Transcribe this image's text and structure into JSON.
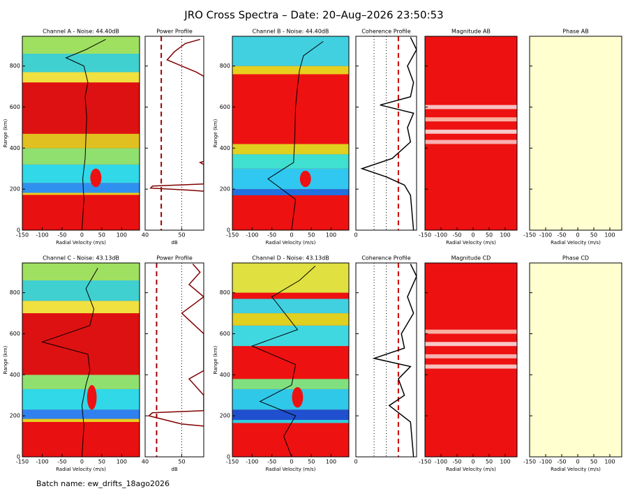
{
  "title": "JRO Cross Spectra – Date: 20–Aug–2026 23:50:53",
  "batch": "Batch name: ew_drifts_18ago2026",
  "chart_data": [
    {
      "type": "heatmap",
      "title": "Channel A - Noise: 44.40dB",
      "xlabel": "Radial Velocity (m/s)",
      "ylabel": "Range (km)",
      "xlim": [
        -150,
        145
      ],
      "ylim": [
        0,
        945
      ],
      "xticks": [
        -150,
        -100,
        -50,
        0,
        50,
        100
      ],
      "yticks": [
        0,
        200,
        400,
        600,
        800
      ],
      "ytick_labels": true,
      "background": "#ee1111",
      "bands": [
        {
          "y0": 0,
          "y1": 172,
          "color": "#e81010"
        },
        {
          "y0": 172,
          "y1": 182,
          "color": "#e8d020"
        },
        {
          "y0": 182,
          "y1": 230,
          "color": "#3090f0"
        },
        {
          "y0": 230,
          "y1": 320,
          "color": "#30d8e8"
        },
        {
          "y0": 320,
          "y1": 400,
          "color": "#90e070"
        },
        {
          "y0": 400,
          "y1": 470,
          "color": "#e0c020"
        },
        {
          "y0": 470,
          "y1": 720,
          "color": "#dd1111"
        },
        {
          "y0": 720,
          "y1": 770,
          "color": "#f0e040"
        },
        {
          "y0": 770,
          "y1": 860,
          "color": "#40d0d0"
        },
        {
          "y0": 860,
          "y1": 945,
          "color": "#a0e060"
        }
      ],
      "blob": {
        "x": 35,
        "y": 255,
        "rx": 14,
        "ry": 45,
        "color": "#ee1111"
      },
      "overlay": {
        "color": "#000000",
        "values": [
          0,
          5,
          2,
          8,
          10,
          12,
          8,
          15,
          5,
          -40,
          10,
          60
        ],
        "range": [
          0,
          150,
          250,
          350,
          450,
          550,
          650,
          720,
          800,
          840,
          880,
          930
        ]
      }
    },
    {
      "type": "profile",
      "title": "Power Profile",
      "xlabel": "dB",
      "xlim": [
        40,
        56
      ],
      "ylim": [
        0,
        945
      ],
      "xticks": [
        40,
        50
      ],
      "yticks": [
        0,
        200,
        400,
        600,
        800
      ],
      "ytick_labels": false,
      "dotted": [
        50
      ],
      "ref_lines": [
        {
          "value": 44.4,
          "color": "#a00000"
        }
      ],
      "series": [
        {
          "color": "#800000",
          "values": [
            56,
            52,
            41.5,
            42,
            56,
            56,
            55,
            56,
            56,
            56,
            54,
            50,
            46,
            48,
            51,
            55
          ],
          "range": [
            190,
            195,
            205,
            215,
            225,
            320,
            330,
            335,
            700,
            750,
            770,
            800,
            830,
            870,
            910,
            930
          ]
        }
      ]
    },
    {
      "type": "heatmap",
      "title": "Channel B - Noise: 44.40dB",
      "xlabel": "Radial Velocity (m/s)",
      "ylabel": "Range (km)",
      "xlim": [
        -150,
        145
      ],
      "ylim": [
        0,
        945
      ],
      "xticks": [
        -150,
        -100,
        -50,
        0,
        50,
        100
      ],
      "yticks": [
        0,
        200,
        400,
        600,
        800
      ],
      "ytick_labels": true,
      "background": "#ee1111",
      "bands": [
        {
          "y0": 0,
          "y1": 170,
          "color": "#ee1111"
        },
        {
          "y0": 170,
          "y1": 200,
          "color": "#2070e0"
        },
        {
          "y0": 200,
          "y1": 300,
          "color": "#30c8f0"
        },
        {
          "y0": 300,
          "y1": 370,
          "color": "#40e0d0"
        },
        {
          "y0": 370,
          "y1": 420,
          "color": "#e0d020"
        },
        {
          "y0": 420,
          "y1": 760,
          "color": "#ee1111"
        },
        {
          "y0": 760,
          "y1": 800,
          "color": "#e8d020"
        },
        {
          "y0": 800,
          "y1": 945,
          "color": "#40d0e0"
        }
      ],
      "blob": {
        "x": 35,
        "y": 250,
        "rx": 14,
        "ry": 40,
        "color": "#ee1111"
      },
      "overlay": {
        "color": "#000000",
        "values": [
          0,
          10,
          -60,
          5,
          8,
          10,
          15,
          20,
          30,
          80
        ],
        "range": [
          0,
          150,
          250,
          330,
          450,
          600,
          700,
          780,
          850,
          920
        ]
      }
    },
    {
      "type": "profile",
      "title": "Coherence Profile",
      "xlabel": "",
      "xlim": [
        0,
        1
      ],
      "ylim": [
        0,
        945
      ],
      "xticks": [
        0
      ],
      "yticks": [
        0,
        200,
        400,
        600,
        800
      ],
      "ytick_labels": false,
      "dotted": [
        0.3,
        0.5
      ],
      "ref_lines": [
        {
          "value": 0.7,
          "color": "#cc0000"
        }
      ],
      "series": [
        {
          "color": "#000000",
          "values": [
            0.95,
            0.9,
            0.8,
            0.5,
            0.1,
            0.6,
            0.9,
            0.85,
            0.95,
            0.4,
            0.9,
            0.95,
            0.85,
            1,
            0.9
          ],
          "range": [
            0,
            170,
            220,
            260,
            300,
            350,
            430,
            500,
            570,
            610,
            650,
            720,
            800,
            880,
            940
          ]
        }
      ]
    },
    {
      "type": "heatmap",
      "title": "Magnitude AB",
      "xlabel": "Radial Velocity (m/s)",
      "xlim": [
        -150,
        137
      ],
      "ylim": [
        0,
        945
      ],
      "xticks": [
        -150,
        -100,
        -50,
        0,
        50,
        100
      ],
      "yticks": [
        0,
        200,
        400,
        600,
        800
      ],
      "ytick_labels": false,
      "background": "#ee1111",
      "bands": [
        {
          "y0": 420,
          "y1": 440,
          "color": "#f8b0b0"
        },
        {
          "y0": 470,
          "y1": 490,
          "color": "#f8c8c8"
        },
        {
          "y0": 530,
          "y1": 550,
          "color": "#f8b0a0"
        },
        {
          "y0": 590,
          "y1": 610,
          "color": "#f8c0c0"
        }
      ]
    },
    {
      "type": "heatmap",
      "title": "Phase AB",
      "xlabel": "Radial Velocity (m/s)",
      "xlim": [
        -150,
        137
      ],
      "ylim": [
        0,
        945
      ],
      "xticks": [
        -150,
        -100,
        -50,
        0,
        50,
        100
      ],
      "yticks": [
        0,
        200,
        400,
        600,
        800
      ],
      "ytick_labels": false,
      "background": "#ffffd0",
      "bands": []
    },
    {
      "type": "heatmap",
      "title": "Channel C - Noise: 43.13dB",
      "xlabel": "Radial Velocity (m/s)",
      "ylabel": "Range (km)",
      "xlim": [
        -150,
        145
      ],
      "ylim": [
        0,
        945
      ],
      "xticks": [
        -150,
        -100,
        -50,
        0,
        50,
        100
      ],
      "yticks": [
        0,
        200,
        400,
        600,
        800
      ],
      "ytick_labels": true,
      "background": "#ee1111",
      "bands": [
        {
          "y0": 0,
          "y1": 170,
          "color": "#e81010"
        },
        {
          "y0": 170,
          "y1": 185,
          "color": "#e8d020"
        },
        {
          "y0": 185,
          "y1": 230,
          "color": "#3080f0"
        },
        {
          "y0": 230,
          "y1": 330,
          "color": "#30d8e8"
        },
        {
          "y0": 330,
          "y1": 400,
          "color": "#90e070"
        },
        {
          "y0": 400,
          "y1": 700,
          "color": "#dd1111"
        },
        {
          "y0": 700,
          "y1": 760,
          "color": "#f0e040"
        },
        {
          "y0": 760,
          "y1": 860,
          "color": "#40d0d0"
        },
        {
          "y0": 860,
          "y1": 945,
          "color": "#a0e060"
        }
      ],
      "blob": {
        "x": 25,
        "y": 290,
        "rx": 12,
        "ry": 60,
        "color": "#ee1111"
      },
      "overlay": {
        "color": "#000000",
        "values": [
          0,
          5,
          0,
          10,
          20,
          15,
          -100,
          20,
          30,
          10,
          40
        ],
        "range": [
          0,
          150,
          250,
          350,
          420,
          500,
          560,
          640,
          720,
          820,
          920
        ]
      }
    },
    {
      "type": "profile",
      "title": "Power Profile",
      "xlabel": "dB",
      "xlim": [
        40,
        56
      ],
      "ylim": [
        0,
        945
      ],
      "xticks": [
        40,
        50
      ],
      "yticks": [
        0,
        200,
        400,
        600,
        800
      ],
      "ytick_labels": false,
      "dotted": [
        50
      ],
      "ref_lines": [
        {
          "value": 43.13,
          "color": "#a00000"
        }
      ],
      "series": [
        {
          "color": "#800000",
          "values": [
            56,
            50,
            41,
            42,
            56,
            56,
            52,
            56,
            56,
            53,
            50,
            53,
            56,
            52,
            55,
            53
          ],
          "range": [
            150,
            160,
            200,
            215,
            225,
            300,
            380,
            420,
            600,
            650,
            700,
            740,
            780,
            840,
            900,
            940
          ]
        }
      ]
    },
    {
      "type": "heatmap",
      "title": "Channel D - Noise: 43.13dB",
      "xlabel": "Radial Velocity (m/s)",
      "ylabel": "Range (km)",
      "xlim": [
        -150,
        145
      ],
      "ylim": [
        0,
        945
      ],
      "xticks": [
        -150,
        -100,
        -50,
        0,
        50,
        100
      ],
      "yticks": [
        0,
        200,
        400,
        600,
        800
      ],
      "ytick_labels": true,
      "background": "#ee1111",
      "bands": [
        {
          "y0": 0,
          "y1": 165,
          "color": "#ee1111"
        },
        {
          "y0": 165,
          "y1": 180,
          "color": "#30d0e0"
        },
        {
          "y0": 180,
          "y1": 230,
          "color": "#2050d0"
        },
        {
          "y0": 230,
          "y1": 330,
          "color": "#30c8e8"
        },
        {
          "y0": 330,
          "y1": 380,
          "color": "#80e080"
        },
        {
          "y0": 380,
          "y1": 540,
          "color": "#ee1111"
        },
        {
          "y0": 540,
          "y1": 640,
          "color": "#40d8e0"
        },
        {
          "y0": 640,
          "y1": 700,
          "color": "#e0d020"
        },
        {
          "y0": 700,
          "y1": 770,
          "color": "#40d0e0"
        },
        {
          "y0": 770,
          "y1": 800,
          "color": "#ee1111"
        },
        {
          "y0": 800,
          "y1": 945,
          "color": "#e0e040"
        }
      ],
      "blob": {
        "x": 15,
        "y": 290,
        "rx": 14,
        "ry": 50,
        "color": "#ee1111"
      },
      "overlay": {
        "color": "#000000",
        "values": [
          0,
          -20,
          10,
          -80,
          0,
          10,
          -100,
          15,
          -50,
          20,
          60
        ],
        "range": [
          0,
          100,
          200,
          270,
          350,
          450,
          540,
          620,
          780,
          860,
          930
        ]
      }
    },
    {
      "type": "profile",
      "title": "Coherence Profile",
      "xlabel": "",
      "xlim": [
        0,
        1
      ],
      "ylim": [
        0,
        945
      ],
      "xticks": [
        0
      ],
      "yticks": [
        0,
        200,
        400,
        600,
        800
      ],
      "ytick_labels": false,
      "dotted": [
        0.3,
        0.5
      ],
      "ref_lines": [
        {
          "value": 0.7,
          "color": "#cc0000"
        }
      ],
      "series": [
        {
          "color": "#000000",
          "values": [
            0.95,
            0.9,
            0.55,
            0.8,
            0.7,
            0.9,
            0.3,
            0.8,
            0.75,
            0.95,
            0.85,
            1,
            0.9
          ],
          "range": [
            0,
            170,
            250,
            300,
            380,
            440,
            480,
            530,
            600,
            700,
            780,
            880,
            940
          ]
        }
      ]
    },
    {
      "type": "heatmap",
      "title": "Magnitude CD",
      "xlabel": "Radial Velocity (m/s)",
      "xlim": [
        -150,
        137
      ],
      "ylim": [
        0,
        945
      ],
      "xticks": [
        -150,
        -100,
        -50,
        0,
        50,
        100
      ],
      "yticks": [
        0,
        200,
        400,
        600,
        800
      ],
      "ytick_labels": false,
      "background": "#ee1111",
      "bands": [
        {
          "y0": 430,
          "y1": 450,
          "color": "#f8c0c0"
        },
        {
          "y0": 480,
          "y1": 500,
          "color": "#f8b0b0"
        },
        {
          "y0": 540,
          "y1": 560,
          "color": "#f8c8c8"
        },
        {
          "y0": 600,
          "y1": 620,
          "color": "#f8b0a0"
        }
      ]
    },
    {
      "type": "heatmap",
      "title": "Phase CD",
      "xlabel": "Radial Velocity (m/s)",
      "xlim": [
        -150,
        137
      ],
      "ylim": [
        0,
        945
      ],
      "xticks": [
        -150,
        -100,
        -50,
        0,
        50,
        100
      ],
      "yticks": [
        0,
        200,
        400,
        600,
        800
      ],
      "ytick_labels": false,
      "background": "#ffffd0",
      "bands": []
    }
  ]
}
